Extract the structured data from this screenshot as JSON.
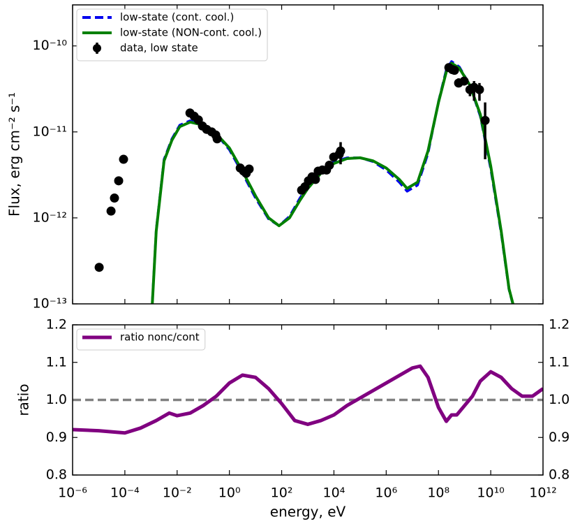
{
  "chart_data": [
    {
      "type": "line",
      "ylabel": "Flux, erg cm⁻² s⁻¹",
      "xscale": "log",
      "yscale": "log",
      "xlim": [
        1e-06,
        1000000000000.0
      ],
      "ylim": [
        1e-13,
        3e-10
      ],
      "yticks": [
        {
          "value": 1e-13,
          "label": "10⁻¹³"
        },
        {
          "value": 1e-12,
          "label": "10⁻¹²"
        },
        {
          "value": 1e-11,
          "label": "10⁻¹¹"
        },
        {
          "value": 1e-10,
          "label": "10⁻¹⁰"
        }
      ],
      "legend": "upper left",
      "series": [
        {
          "name": "low-state (cont. cool.)",
          "color": "#0000ee",
          "style": "dashed",
          "x": [
            0.001122,
            0.001585,
            0.003162,
            0.00631,
            0.01259,
            0.03162,
            0.1,
            0.3162,
            1,
            3.162,
            10,
            31.62,
            79.43,
            199.5,
            501.2,
            1000,
            3162,
            10000.0,
            31620.0,
            100000.0,
            316200.0,
            1000000.0,
            3162000.0,
            6310000.0,
            15850000.0,
            39810000.0,
            100000000.0,
            199500000.0,
            316200000.0,
            631000000.0,
            1585000000.0,
            3981000000.0,
            10000000000.0,
            25120000000.0,
            50120000000.0,
            70790000000.0
          ],
          "values": [
            1.05e-13,
            7.3e-13,
            4.8e-12,
            8.3e-12,
            1.2e-11,
            1.35e-11,
            1.22e-11,
            9.4e-12,
            6.2e-12,
            3.3e-12,
            1.7e-12,
            9.7e-13,
            8.1e-13,
            1.04e-12,
            1.7e-12,
            2.35e-12,
            3.5e-12,
            4.5e-12,
            5e-12,
            5e-12,
            4.5e-12,
            3.6e-12,
            2.6e-12,
            2.04e-12,
            2.4e-12,
            5.6e-12,
            2.25e-11,
            5.3e-11,
            6.6e-11,
            5.7e-11,
            3.5e-11,
            1.52e-11,
            3.7e-12,
            6.6e-13,
            1.46e-13,
            9.8e-14
          ]
        },
        {
          "name": "low-state (NON-cont. cool.)",
          "color": "#008000",
          "style": "solid",
          "x": [
            0.001122,
            0.001585,
            0.003162,
            0.00631,
            0.01259,
            0.03162,
            0.1,
            0.3162,
            1,
            3.162,
            10,
            31.62,
            79.43,
            199.5,
            501.2,
            1000,
            3162,
            10000.0,
            31620.0,
            100000.0,
            316200.0,
            1000000.0,
            3162000.0,
            6310000.0,
            15850000.0,
            39810000.0,
            100000000.0,
            199500000.0,
            316200000.0,
            631000000.0,
            1585000000.0,
            3981000000.0,
            10000000000.0,
            25120000000.0,
            50120000000.0,
            70790000000.0
          ],
          "values": [
            1e-13,
            7e-13,
            4.6e-12,
            8e-12,
            1.15e-11,
            1.3e-11,
            1.2e-11,
            9.5e-12,
            6.5e-12,
            3.5e-12,
            1.8e-12,
            1e-12,
            8.1e-13,
            1e-12,
            1.6e-12,
            2.2e-12,
            3.3e-12,
            4.3e-12,
            4.9e-12,
            5e-12,
            4.6e-12,
            3.8e-12,
            2.8e-12,
            2.2e-12,
            2.6e-12,
            6e-12,
            2.2e-11,
            5e-11,
            6.3e-11,
            5.5e-11,
            3.5e-11,
            1.6e-11,
            4e-12,
            7e-13,
            1.5e-13,
            1e-13
          ]
        },
        {
          "name": "data, low state",
          "type": "scatter",
          "color": "#000000",
          "x": [
            1.04e-05,
            2.96e-05,
            4e-05,
            5.8e-05,
            8.9e-05,
            0.031,
            0.045,
            0.065,
            0.093,
            0.135,
            0.21,
            0.3,
            0.34,
            2.6,
            3.5,
            4.4,
            5.7,
            580,
            780,
            1060,
            1450,
            1960,
            2500,
            3600,
            5200,
            6700,
            9800,
            16000,
            18000,
            250000000.0,
            340000000.0,
            410000000.0,
            590000000.0,
            960000000.0,
            1600000000.0,
            2300000000.0,
            3700000000.0,
            6100000000.0
          ],
          "values": [
            2.66e-13,
            1.2e-12,
            1.7e-12,
            2.7e-12,
            4.8e-12,
            1.66e-11,
            1.52e-11,
            1.38e-11,
            1.17e-11,
            1.07e-11,
            1e-11,
            9.2e-12,
            8.3e-12,
            3.8e-12,
            3.5e-12,
            3.3e-12,
            3.7e-12,
            2.1e-12,
            2.3e-12,
            2.7e-12,
            3e-12,
            2.8e-12,
            3.5e-12,
            3.6e-12,
            3.6e-12,
            4.1e-12,
            5.1e-12,
            5.5e-12,
            6e-12,
            5.6e-11,
            5.3e-11,
            5.2e-11,
            3.7e-11,
            3.9e-11,
            3.1e-11,
            3.3e-11,
            3.1e-11,
            1.36e-11
          ],
          "yerr_minus": [
            null,
            null,
            null,
            null,
            null,
            null,
            null,
            null,
            null,
            null,
            null,
            null,
            null,
            null,
            null,
            null,
            null,
            null,
            null,
            null,
            null,
            null,
            null,
            null,
            null,
            null,
            null,
            null,
            1.8e-12,
            null,
            null,
            null,
            4e-12,
            null,
            5e-12,
            1e-11,
            8e-12,
            8.8e-12
          ],
          "yerr_plus": [
            null,
            null,
            null,
            null,
            null,
            null,
            null,
            null,
            null,
            null,
            null,
            null,
            null,
            null,
            null,
            null,
            null,
            null,
            null,
            null,
            null,
            null,
            null,
            null,
            null,
            null,
            null,
            null,
            1.6e-12,
            null,
            null,
            null,
            5e-12,
            null,
            5e-12,
            6e-12,
            6e-12,
            8.4e-12
          ]
        }
      ]
    },
    {
      "type": "line",
      "xlabel": "energy, eV",
      "ylabel": "ratio",
      "xscale": "log",
      "xlim": [
        1e-06,
        1000000000000.0
      ],
      "ylim": [
        0.8,
        1.2
      ],
      "xticks": [
        {
          "value": 1e-06,
          "label": "10⁻⁶"
        },
        {
          "value": 0.0001,
          "label": "10⁻⁴"
        },
        {
          "value": 0.01,
          "label": "10⁻²"
        },
        {
          "value": 1,
          "label": "10⁰"
        },
        {
          "value": 100,
          "label": "10²"
        },
        {
          "value": 10000.0,
          "label": "10⁴"
        },
        {
          "value": 1000000.0,
          "label": "10⁶"
        },
        {
          "value": 100000000.0,
          "label": "10⁸"
        },
        {
          "value": 10000000000.0,
          "label": "10¹⁰"
        },
        {
          "value": 1000000000000.0,
          "label": "10¹²"
        }
      ],
      "yticks": [
        0.8,
        0.9,
        {
          "value": 1,
          "label": "1.0"
        },
        1.1,
        1.2
      ],
      "right_axis_labels": true,
      "reference_line": {
        "value": 1,
        "color": "#808080",
        "style": "dashed"
      },
      "legend": "upper left",
      "series": [
        {
          "name": "ratio nonc/cont",
          "color": "#800080",
          "style": "solid",
          "x": [
            1e-06,
            1e-05,
            0.0001,
            0.0003981,
            0.001585,
            0.005012,
            0.01,
            0.03162,
            0.1,
            0.3162,
            1,
            3.162,
            10,
            31.62,
            100,
            316.2,
            1000,
            3162,
            10000.0,
            31620.0,
            100000.0,
            316200.0,
            1000000.0,
            3162000.0,
            10000000.0,
            19950000.0,
            39810000.0,
            100000000.0,
            199500000.0,
            316200000.0,
            501200000.0,
            1000000000.0,
            1995000000.0,
            3981000000.0,
            10000000000.0,
            25120000000.0,
            63100000000.0,
            158500000000.0,
            398100000000.0,
            1000000000000.0
          ],
          "values": [
            0.921,
            0.918,
            0.912,
            0.925,
            0.945,
            0.965,
            0.958,
            0.965,
            0.985,
            1.01,
            1.045,
            1.066,
            1.06,
            1.03,
            0.99,
            0.945,
            0.935,
            0.945,
            0.96,
            0.985,
            1.005,
            1.025,
            1.045,
            1.065,
            1.085,
            1.09,
            1.06,
            0.98,
            0.943,
            0.96,
            0.96,
            0.985,
            1.01,
            1.05,
            1.075,
            1.06,
            1.03,
            1.01,
            1.01,
            1.03
          ]
        }
      ]
    }
  ]
}
